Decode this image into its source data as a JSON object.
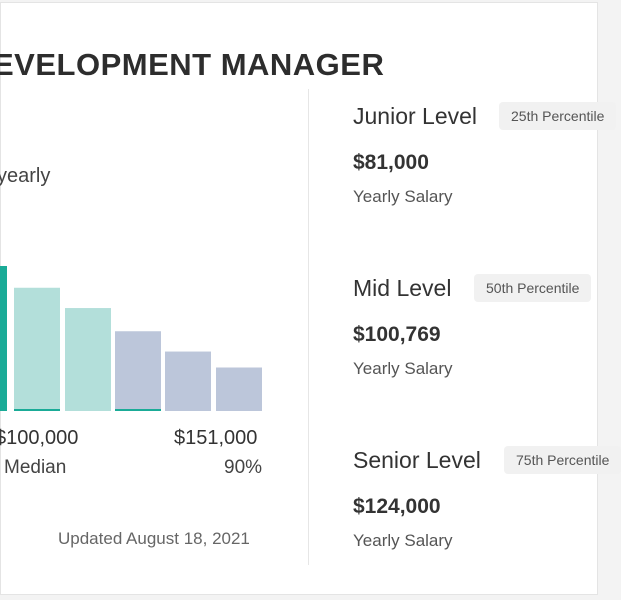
{
  "title": "EVELOPMENT MANAGER",
  "period_label": "yearly",
  "chart_data": {
    "type": "bar",
    "values": [
      100,
      85,
      71,
      55,
      41,
      30
    ],
    "highlight_values": [
      100,
      2,
      0,
      2,
      0,
      0
    ],
    "x_tick_labels": [
      "$100,000",
      "$151,000"
    ],
    "x_tick_sublabels": [
      "Median",
      "90%"
    ],
    "colors": {
      "highlight": "#1aab97",
      "teal_light": "#b3dfda",
      "blue_light": "#bcc6da",
      "accent_line": "#1aab97"
    }
  },
  "updated": "Updated August 18, 2021",
  "levels": [
    {
      "name": "Junior Level",
      "percentile": "25th Percentile",
      "value": "$81,000",
      "unit": "Yearly Salary"
    },
    {
      "name": "Mid Level",
      "percentile": "50th Percentile",
      "value": "$100,769",
      "unit": "Yearly Salary"
    },
    {
      "name": "Senior Level",
      "percentile": "75th Percentile",
      "value": "$124,000",
      "unit": "Yearly Salary"
    }
  ]
}
